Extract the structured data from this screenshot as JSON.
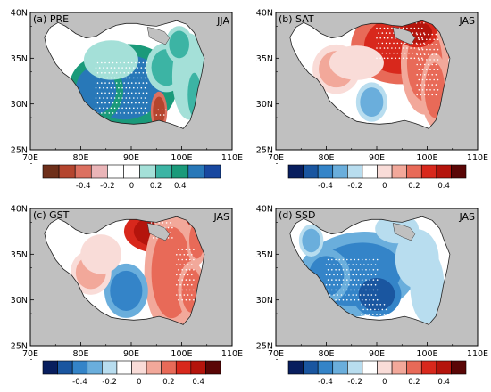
{
  "panels": [
    {
      "label": "(a)  PRE",
      "season": "JJA",
      "palette": "precip",
      "pattern": "a"
    },
    {
      "label": "(b)  SAT",
      "season": "JAS",
      "palette": "temp",
      "pattern": "b"
    },
    {
      "label": "(c)  GST",
      "season": "JAS",
      "palette": "temp",
      "pattern": "c"
    },
    {
      "label": "(d)  SSD",
      "season": "JAS",
      "palette": "temp",
      "pattern": "d"
    }
  ],
  "axes": {
    "y_ticks": [
      "40N",
      "35N",
      "30N",
      "25N"
    ],
    "x_ticks": [
      "70E",
      "80E",
      "90E",
      "100E",
      "110E"
    ]
  },
  "colorbar": {
    "labels": [
      "-0.4",
      "-0.2",
      "0",
      "0.2",
      "0.4"
    ]
  },
  "colors": {
    "land_background": "#c0c0c0",
    "precip": [
      "#6e2f1a",
      "#b4452e",
      "#dc7060",
      "#eab5b8",
      "#ffffff",
      "#ffffff",
      "#a4e0d8",
      "#3cb4a4",
      "#1a9a7a",
      "#2878b8",
      "#1848a0"
    ],
    "temp": [
      "#081e5e",
      "#1a56a0",
      "#3484c8",
      "#6aaedc",
      "#b8ddef",
      "#ffffff",
      "#f9dcd8",
      "#f2a89a",
      "#e86a58",
      "#d8281c",
      "#b4140c",
      "#5a0606"
    ]
  }
}
